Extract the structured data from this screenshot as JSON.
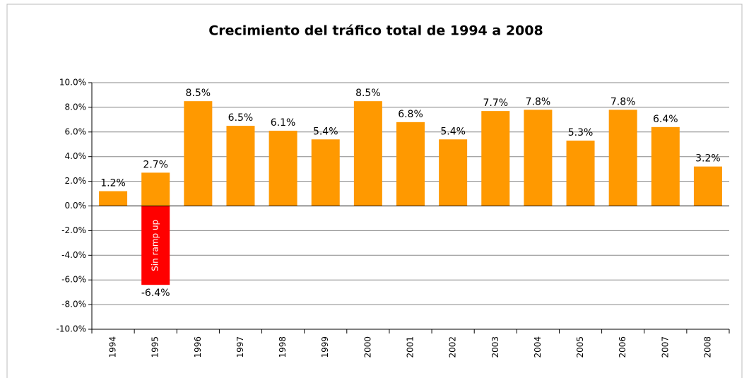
{
  "chart_data": {
    "type": "bar",
    "title": "Crecimiento del tráfico total de 1994 a 2008",
    "categories": [
      "1994",
      "1995",
      "1996",
      "1997",
      "1998",
      "1999",
      "2000",
      "2001",
      "2002",
      "2003",
      "2004",
      "2005",
      "2006",
      "2007",
      "2008"
    ],
    "series": [
      {
        "color": "#ff9900",
        "values": [
          1.2,
          2.7,
          8.5,
          6.5,
          6.1,
          5.4,
          8.5,
          6.8,
          5.4,
          7.7,
          7.8,
          5.3,
          7.8,
          6.4,
          3.2
        ],
        "value_labels": [
          "1.2%",
          "2.7%",
          "8.5%",
          "6.5%",
          "6.1%",
          "5.4%",
          "8.5%",
          "6.8%",
          "5.4%",
          "7.7%",
          "7.8%",
          "5.3%",
          "7.8%",
          "6.4%",
          "3.2%"
        ]
      },
      {
        "color": "#ff0000",
        "annotation": "Sin ramp up",
        "values": [
          null,
          -6.4,
          null,
          null,
          null,
          null,
          null,
          null,
          null,
          null,
          null,
          null,
          null,
          null,
          null
        ],
        "value_labels": [
          null,
          "-6.4%",
          null,
          null,
          null,
          null,
          null,
          null,
          null,
          null,
          null,
          null,
          null,
          null,
          null
        ]
      }
    ],
    "ylim": [
      -10,
      10
    ],
    "yticks": [
      {
        "value": -10,
        "label": "-10.0%"
      },
      {
        "value": -8,
        "label": "-8.0%"
      },
      {
        "value": -6,
        "label": "-6.0%"
      },
      {
        "value": -4,
        "label": "-4.0%"
      },
      {
        "value": -2,
        "label": "-2.0%"
      },
      {
        "value": 0,
        "label": "0.0%"
      },
      {
        "value": 2,
        "label": "2.0%"
      },
      {
        "value": 4,
        "label": "4.0%"
      },
      {
        "value": 6,
        "label": "6.0%"
      },
      {
        "value": 8,
        "label": "8.0%"
      },
      {
        "value": 10,
        "label": "10.0%"
      }
    ],
    "grid": true
  }
}
